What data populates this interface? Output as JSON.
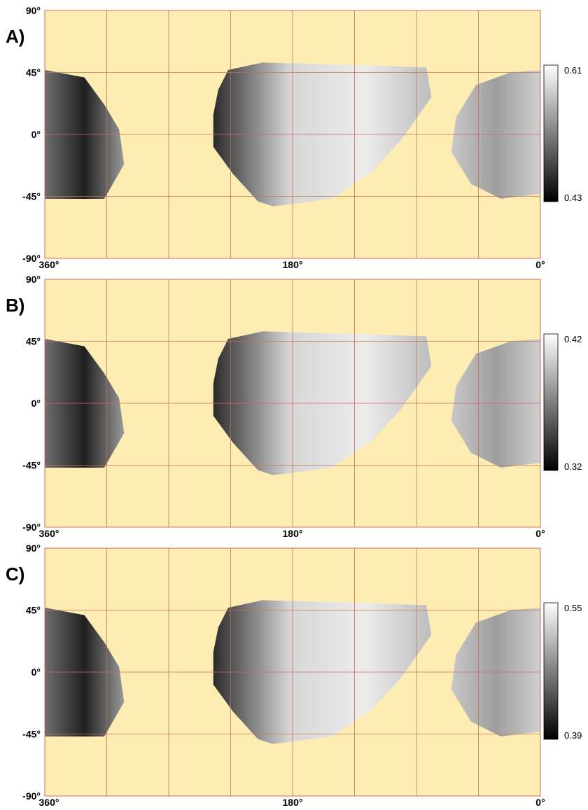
{
  "panels": [
    {
      "label": "A)",
      "colorbar": {
        "max": "0.61",
        "min": "0.43"
      }
    },
    {
      "label": "B)",
      "colorbar": {
        "max": "0.42",
        "min": "0.32"
      }
    },
    {
      "label": "C)",
      "colorbar": {
        "max": "0.55",
        "min": "0.39"
      }
    }
  ],
  "axes": {
    "y_ticks": [
      "90°",
      "45°",
      "0°",
      "-45°",
      "-90°"
    ],
    "x_ticks": [
      "360°",
      "180°",
      "0°"
    ]
  },
  "colors": {
    "background": "#fdedb3",
    "grid": "#c8705a",
    "frame": "#c8705a"
  }
}
